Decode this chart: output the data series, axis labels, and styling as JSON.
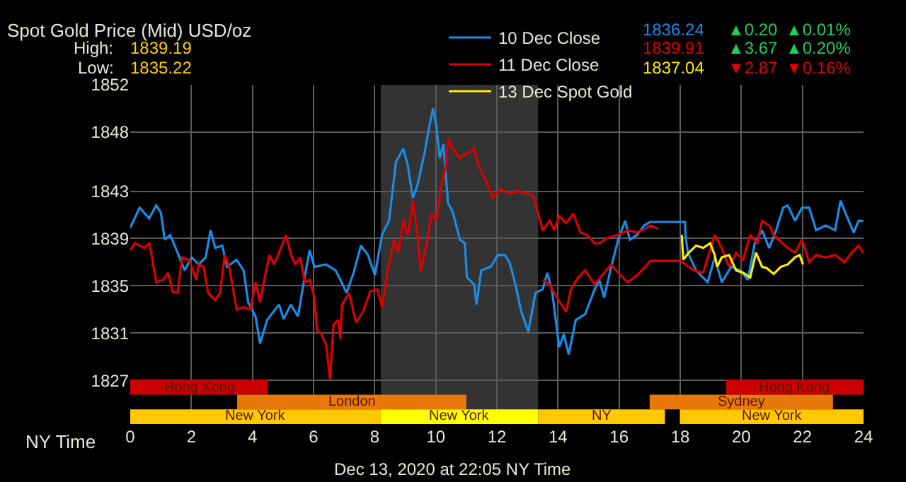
{
  "chart_data": [
    {
      "type": "line",
      "title": "Spot Gold Price (Mid) USD/oz",
      "annotations": [
        "High:",
        "1839.19",
        "Low:",
        "1835.22",
        "1836.24",
        "▲0.20",
        "▲0.01%",
        "1839.91",
        "▲3.67",
        "▲0.20%",
        "1837.04",
        "▼2.87",
        "▼0.16%",
        "Dec 13, 2020 at 22:05 NY Time"
      ],
      "xlim": [
        0,
        24
      ],
      "xticks": [
        0,
        2,
        4,
        6,
        8,
        10,
        12,
        14,
        16,
        18,
        20,
        22,
        24
      ],
      "ylim": [
        1823.3,
        1852
      ],
      "yticks": [
        1827,
        1831,
        1835,
        1839,
        1843,
        1848,
        1852
      ],
      "xlabel": "NY Time",
      "grid": true,
      "legend": "top right",
      "line_style": "solid",
      "bands": [
        {
          "axis": "x",
          "from": 8.2,
          "to": 13.35,
          "color": "#333333"
        },
        {
          "axis": "x",
          "from": 0,
          "to": 4.5,
          "label": "Hong Kong",
          "color": "#cc0000"
        },
        {
          "axis": "x",
          "from": 19.5,
          "to": 24,
          "label": "Hong Kong",
          "color": "#cc0000"
        },
        {
          "axis": "x",
          "from": 3.5,
          "to": 11,
          "label": "London",
          "color": "#e8780a"
        },
        {
          "axis": "x",
          "from": 17,
          "to": 23,
          "label": "Sydney",
          "color": "#e8780a"
        },
        {
          "axis": "x",
          "from": 0,
          "to": 8.2,
          "label": "New York",
          "color": "#ffc800"
        },
        {
          "axis": "x",
          "from": 8.2,
          "to": 13.35,
          "label": "New York",
          "color": "#ffff00"
        },
        {
          "axis": "x",
          "from": 13.35,
          "to": 17.5,
          "label": "NY",
          "color": "#ffc800"
        },
        {
          "axis": "x",
          "from": 18,
          "to": 24,
          "label": "New York",
          "color": "#ffc800"
        }
      ],
      "series": [
        {
          "name": "10 Dec Close",
          "color": "#1a8ce6",
          "x": [
            0,
            0.31,
            0.62,
            0.85,
            1.0,
            1.13,
            1.31,
            1.55,
            1.78,
            2.01,
            2.24,
            2.47,
            2.63,
            2.78,
            3.01,
            3.17,
            3.48,
            3.71,
            3.86,
            4.1,
            4.25,
            4.48,
            4.87,
            5.02,
            5.26,
            5.49,
            5.64,
            5.87,
            6.03,
            6.41,
            6.72,
            6.88,
            7.08,
            7.31,
            7.55,
            7.78,
            8.01,
            8.24,
            8.47,
            8.7,
            8.94,
            9.09,
            9.25,
            9.4,
            9.63,
            9.79,
            9.91,
            10.02,
            10.13,
            10.25,
            10.4,
            10.56,
            10.79,
            10.95,
            11.02,
            11.26,
            11.33,
            11.49,
            11.8,
            12.03,
            12.26,
            12.41,
            12.57,
            12.8,
            13.03,
            13.26,
            13.5,
            13.65,
            13.81,
            14.04,
            14.19,
            14.35,
            14.58,
            14.89,
            15.2,
            15.35,
            15.51,
            15.74,
            15.97,
            16.2,
            16.35,
            16.59,
            16.82,
            17.02,
            18.16,
            18.17,
            18.25,
            18.52,
            18.9,
            19.13,
            19.36,
            19.67,
            19.98,
            20.21,
            20.44,
            20.68,
            20.91,
            21.14,
            21.37,
            21.52,
            21.76,
            21.99,
            22.22,
            22.45,
            22.76,
            23.07,
            23.25,
            23.45,
            23.68,
            23.84,
            23.99
          ],
          "values": [
            1839.9,
            1841.6,
            1840.7,
            1841.8,
            1841.2,
            1838.9,
            1839.3,
            1837.8,
            1836.3,
            1837.4,
            1836.8,
            1837.4,
            1839.7,
            1838.2,
            1838.4,
            1836.6,
            1837.2,
            1836.3,
            1833.6,
            1832.4,
            1830.1,
            1832.1,
            1833.4,
            1832.2,
            1833.4,
            1832.4,
            1834.7,
            1838.0,
            1836.6,
            1836.8,
            1836.3,
            1835.5,
            1834.4,
            1836.1,
            1838.4,
            1837.6,
            1835.9,
            1839.3,
            1840.5,
            1845.5,
            1846.6,
            1845.1,
            1842.4,
            1843.5,
            1846.2,
            1848.5,
            1850.0,
            1848.5,
            1845.8,
            1847.0,
            1842.0,
            1841.2,
            1838.9,
            1838.6,
            1835.7,
            1835.1,
            1833.4,
            1836.3,
            1836.6,
            1837.6,
            1837.6,
            1837.0,
            1835.5,
            1832.8,
            1831.1,
            1834.4,
            1834.7,
            1836.1,
            1834.5,
            1829.8,
            1830.9,
            1829.2,
            1832.1,
            1832.6,
            1834.7,
            1835.5,
            1834.0,
            1836.6,
            1838.9,
            1840.5,
            1838.9,
            1839.3,
            1840.1,
            1840.4,
            1840.4,
            1839.3,
            1837.8,
            1836.3,
            1835.3,
            1837.4,
            1835.3,
            1836.6,
            1836.3,
            1835.5,
            1838.6,
            1839.7,
            1838.2,
            1839.7,
            1841.6,
            1841.8,
            1840.5,
            1841.6,
            1841.6,
            1839.7,
            1840.1,
            1839.7,
            1842.2,
            1840.9,
            1839.5,
            1840.5,
            1840.5
          ]
        },
        {
          "name": "11 Dec Close",
          "color": "#dd0000",
          "x": [
            0,
            0.15,
            0.31,
            0.46,
            0.62,
            0.7,
            0.85,
            1.08,
            1.24,
            1.39,
            1.55,
            1.7,
            1.93,
            2.16,
            2.24,
            2.4,
            2.55,
            2.78,
            2.94,
            3.09,
            3.25,
            3.48,
            3.71,
            3.94,
            4.1,
            4.25,
            4.4,
            4.56,
            4.71,
            4.87,
            5.1,
            5.26,
            5.41,
            5.56,
            5.72,
            5.87,
            6.03,
            6.11,
            6.26,
            6.41,
            6.54,
            6.65,
            6.8,
            6.88,
            6.93,
            7.16,
            7.39,
            7.62,
            7.85,
            8.09,
            8.24,
            8.4,
            8.63,
            8.78,
            8.94,
            9.09,
            9.25,
            9.4,
            9.51,
            9.71,
            9.86,
            10.02,
            10.17,
            10.33,
            10.4,
            10.56,
            10.79,
            11.02,
            11.26,
            11.41,
            11.64,
            11.87,
            12.11,
            12.41,
            12.72,
            13.19,
            13.34,
            13.5,
            13.73,
            13.88,
            14.04,
            14.27,
            14.5,
            14.73,
            14.96,
            15.2,
            15.35,
            15.66,
            15.97,
            16.28,
            16.59,
            16.9,
            17.05,
            17.28
          ],
          "values": [
            1838.0,
            1838.6,
            1838.4,
            1838.2,
            1838.6,
            1837.6,
            1835.3,
            1835.5,
            1836.1,
            1834.5,
            1834.4,
            1837.4,
            1837.2,
            1835.5,
            1836.8,
            1836.6,
            1834.4,
            1833.8,
            1834.4,
            1837.6,
            1836.5,
            1833.0,
            1833.2,
            1833.0,
            1835.3,
            1833.6,
            1835.7,
            1837.6,
            1836.8,
            1837.8,
            1839.3,
            1837.6,
            1836.8,
            1837.4,
            1835.3,
            1835.5,
            1834.0,
            1831.3,
            1830.9,
            1830.0,
            1827.1,
            1831.7,
            1832.1,
            1830.5,
            1833.4,
            1834.4,
            1831.9,
            1832.8,
            1834.5,
            1834.7,
            1833.2,
            1835.9,
            1838.9,
            1837.8,
            1840.5,
            1839.3,
            1842.2,
            1839.3,
            1836.3,
            1838.6,
            1841.1,
            1840.5,
            1843.2,
            1845.1,
            1847.4,
            1846.6,
            1845.8,
            1846.2,
            1846.6,
            1845.1,
            1843.9,
            1842.4,
            1843.2,
            1842.8,
            1843.0,
            1842.6,
            1841.2,
            1839.7,
            1840.5,
            1839.7,
            1840.9,
            1840.3,
            1841.1,
            1839.5,
            1839.3,
            1838.6,
            1838.6,
            1839.1,
            1839.3,
            1839.7,
            1839.5,
            1839.9,
            1840.1,
            1839.8
          ]
        },
        {
          "color": "#dd0000",
          "x": [
            13.5,
            13.73,
            13.96,
            14.27,
            14.42,
            14.66,
            14.89,
            15.2,
            15.51,
            15.74,
            15.97,
            16.28,
            16.59,
            16.82,
            17.02,
            18.01,
            18.44,
            18.75,
            19.13,
            19.36,
            19.6,
            19.83,
            20.06,
            20.29,
            20.52,
            20.68,
            20.91,
            21.06,
            21.22,
            21.52,
            21.76,
            21.99,
            22.22,
            22.45,
            22.76,
            23.07,
            23.38,
            23.61,
            23.84,
            23.99
          ],
          "values": [
            1835.5,
            1835.1,
            1834.0,
            1832.8,
            1834.7,
            1835.7,
            1836.3,
            1835.1,
            1836.1,
            1836.8,
            1836.1,
            1835.3,
            1835.9,
            1836.5,
            1837.1,
            1837.1,
            1836.3,
            1836.1,
            1839.3,
            1838.2,
            1836.6,
            1837.8,
            1837.2,
            1839.3,
            1838.6,
            1840.5,
            1840.1,
            1839.3,
            1838.9,
            1838.2,
            1837.8,
            1838.9,
            1837.0,
            1837.6,
            1837.4,
            1837.6,
            1837.0,
            1837.8,
            1838.4,
            1837.8
          ]
        },
        {
          "name": "13 Dec Spot Gold",
          "color": "#ffee00",
          "x": [
            18.05,
            18.1,
            18.28,
            18.52,
            18.75,
            18.98,
            19.13,
            19.21,
            19.36,
            19.6,
            19.83,
            20.06,
            20.29,
            20.48,
            20.68,
            20.83,
            21.06,
            21.29,
            21.52,
            21.76,
            21.91,
            22.02
          ],
          "values": [
            1839.3,
            1837.2,
            1837.8,
            1838.4,
            1838.2,
            1838.6,
            1837.6,
            1836.6,
            1837.4,
            1837.6,
            1836.3,
            1836.1,
            1835.7,
            1837.8,
            1836.6,
            1836.5,
            1836.0,
            1836.6,
            1836.8,
            1837.4,
            1837.6,
            1836.8
          ]
        }
      ]
    }
  ]
}
